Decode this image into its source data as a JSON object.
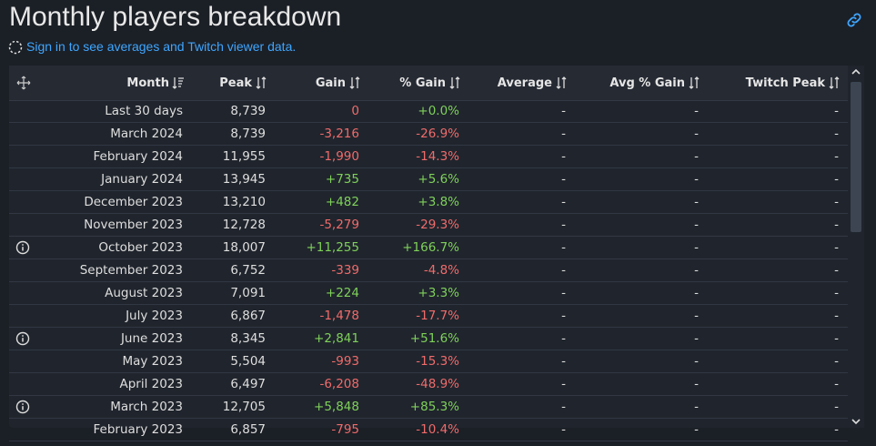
{
  "header": {
    "title": "Monthly players breakdown",
    "notice": "Sign in to see averages and Twitch viewer data."
  },
  "table": {
    "columns": [
      "Month",
      "Peak",
      "Gain",
      "% Gain",
      "Average",
      "Avg % Gain",
      "Twitch Peak"
    ],
    "rows": [
      [
        "Last 30 days",
        "8,739",
        "0",
        "+0.0%",
        "-",
        "-",
        "-"
      ],
      [
        "March 2024",
        "8,739",
        "-3,216",
        "-26.9%",
        "-",
        "-",
        "-"
      ],
      [
        "February 2024",
        "11,955",
        "-1,990",
        "-14.3%",
        "-",
        "-",
        "-"
      ],
      [
        "January 2024",
        "13,945",
        "+735",
        "+5.6%",
        "-",
        "-",
        "-"
      ],
      [
        "December 2023",
        "13,210",
        "+482",
        "+3.8%",
        "-",
        "-",
        "-"
      ],
      [
        "November 2023",
        "12,728",
        "-5,279",
        "-29.3%",
        "-",
        "-",
        "-"
      ],
      [
        "October 2023",
        "18,007",
        "+11,255",
        "+166.7%",
        "-",
        "-",
        "-"
      ],
      [
        "September 2023",
        "6,752",
        "-339",
        "-4.8%",
        "-",
        "-",
        "-"
      ],
      [
        "August 2023",
        "7,091",
        "+224",
        "+3.3%",
        "-",
        "-",
        "-"
      ],
      [
        "July 2023",
        "6,867",
        "-1,478",
        "-17.7%",
        "-",
        "-",
        "-"
      ],
      [
        "June 2023",
        "8,345",
        "+2,841",
        "+51.6%",
        "-",
        "-",
        "-"
      ],
      [
        "May 2023",
        "5,504",
        "-993",
        "-15.3%",
        "-",
        "-",
        "-"
      ],
      [
        "April 2023",
        "6,497",
        "-6,208",
        "-48.9%",
        "-",
        "-",
        "-"
      ],
      [
        "March 2023",
        "12,705",
        "+5,848",
        "+85.3%",
        "-",
        "-",
        "-"
      ],
      [
        "February 2023",
        "6,857",
        "-795",
        "-10.4%",
        "-",
        "-",
        "-"
      ]
    ],
    "info_rows": [
      6,
      10,
      13
    ]
  }
}
